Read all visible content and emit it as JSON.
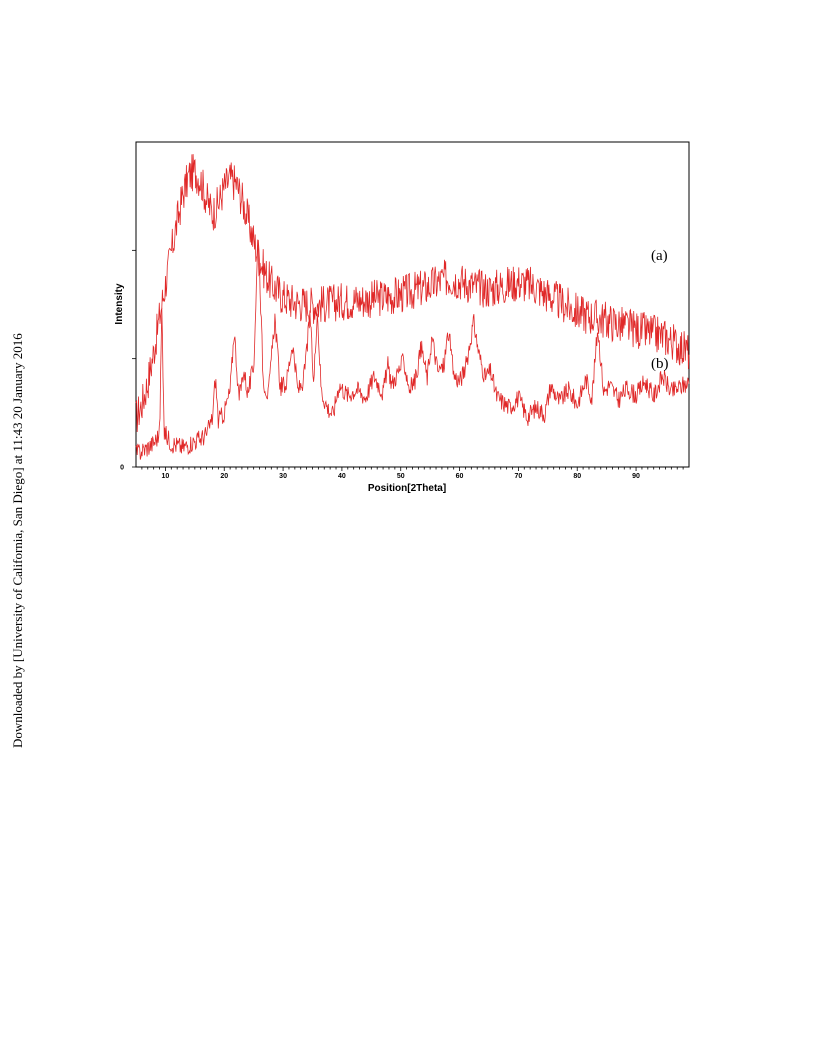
{
  "page": {
    "download_note": "Downloaded by [University of California, San Diego] at 11:43 20 January 2016"
  },
  "chart_data": {
    "type": "line",
    "title": "",
    "xlabel": "Position[2Theta]",
    "ylabel": "Intensity",
    "xlim": [
      5,
      99
    ],
    "x_ticks": [
      10,
      20,
      30,
      40,
      50,
      60,
      70,
      80,
      90
    ],
    "x_tick_labels": [
      "10",
      "20",
      "30",
      "40",
      "50",
      "60",
      "70",
      "80",
      "90"
    ],
    "y_tick_labels": [
      "0"
    ],
    "y_units": "arbitrary, curves stacked",
    "grid": false,
    "line_color": "#e02828",
    "series": [
      {
        "name": "(a)",
        "x": [
          5,
          6,
          7,
          8,
          9,
          10,
          11,
          12,
          13,
          14,
          15,
          16,
          17,
          18,
          19,
          20,
          21,
          22,
          23,
          24,
          25,
          26,
          27,
          28,
          30,
          32,
          35,
          38,
          40,
          45,
          50,
          55,
          58,
          60,
          63,
          65,
          68,
          70,
          73,
          75,
          78,
          80,
          85,
          90,
          95,
          99
        ],
        "y": [
          4.5,
          5.8,
          7.8,
          10.6,
          13.8,
          16.9,
          19.8,
          22.7,
          25.2,
          26.9,
          27.3,
          26.5,
          24.7,
          23.4,
          24.3,
          25.8,
          26.6,
          26.2,
          24.8,
          22.9,
          20.9,
          19.2,
          17.9,
          16.9,
          15.7,
          15.2,
          15.0,
          15.1,
          15.3,
          15.5,
          15.9,
          16.7,
          17.5,
          17.2,
          16.6,
          16.4,
          16.8,
          17.1,
          16.6,
          15.9,
          14.9,
          14.3,
          13.5,
          12.7,
          12.0,
          10.6
        ]
      },
      {
        "name": "(b)",
        "x": [
          5,
          7,
          8,
          9,
          9.4,
          9.8,
          11,
          13,
          15,
          16,
          17,
          18,
          18.5,
          19,
          20,
          21,
          21.7,
          22.5,
          23.3,
          24,
          25,
          25.8,
          26.6,
          27.5,
          28.6,
          29.5,
          30.5,
          31.6,
          32.5,
          33.5,
          34.6,
          35.2,
          35.8,
          36.5,
          37.5,
          38.5,
          39.5,
          41,
          42.5,
          44,
          45.5,
          47,
          47.8,
          48.5,
          49.5,
          50.5,
          51.5,
          52.5,
          53.5,
          54.5,
          55.3,
          56.3,
          57.3,
          58.1,
          59,
          60,
          61,
          62.4,
          63.3,
          64.3,
          65.3,
          66.3,
          67.3,
          68.5,
          70,
          71.5,
          73,
          74.5,
          75.5,
          77,
          78.5,
          80,
          81.5,
          82.5,
          83.5,
          84.5,
          85.5,
          87,
          88.5,
          90,
          91.5,
          93,
          94.5,
          96,
          97.5,
          99
        ],
        "y": [
          1.2,
          1.8,
          2.2,
          3.0,
          14.8,
          3.2,
          2.2,
          1.8,
          2.4,
          2.6,
          3.0,
          4.5,
          8.3,
          4.2,
          5.0,
          7.0,
          12.7,
          6.2,
          9.0,
          6.8,
          9.2,
          22.0,
          8.2,
          6.5,
          13.8,
          7.4,
          7.6,
          11.5,
          7.0,
          8.0,
          14.0,
          7.5,
          14.6,
          7.0,
          5.5,
          4.8,
          7.6,
          6.6,
          7.2,
          6.4,
          8.4,
          6.8,
          9.4,
          7.6,
          8.7,
          9.8,
          7.2,
          8.1,
          11.1,
          8.2,
          12.0,
          8.8,
          9.3,
          12.6,
          8.5,
          7.9,
          9.1,
          13.4,
          10.4,
          8.3,
          8.8,
          6.5,
          6.0,
          5.5,
          6.4,
          4.6,
          5.5,
          4.9,
          7.5,
          6.0,
          7.1,
          5.8,
          8.1,
          6.4,
          12.9,
          6.9,
          7.6,
          6.2,
          7.3,
          6.6,
          7.9,
          6.5,
          8.4,
          6.9,
          7.4,
          7.8
        ]
      }
    ]
  }
}
